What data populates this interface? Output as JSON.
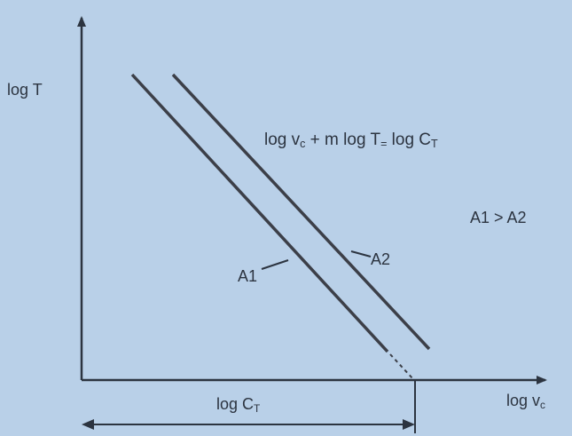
{
  "axes": {
    "y_label": "log T",
    "x_label_main": "log v",
    "x_label_sub": "c"
  },
  "equation": {
    "part1": "log v",
    "sub1": "c",
    "part2": " + m log T",
    "sub2": "=",
    "part3": " log C",
    "sub3": "T"
  },
  "inequality": "A1 > A2",
  "lines": {
    "a1_label": "A1",
    "a2_label": "A2"
  },
  "intercept": {
    "main": "log C",
    "sub": "T"
  },
  "colors": {
    "background": "#b9d0e8",
    "ink": "#2c3440"
  }
}
